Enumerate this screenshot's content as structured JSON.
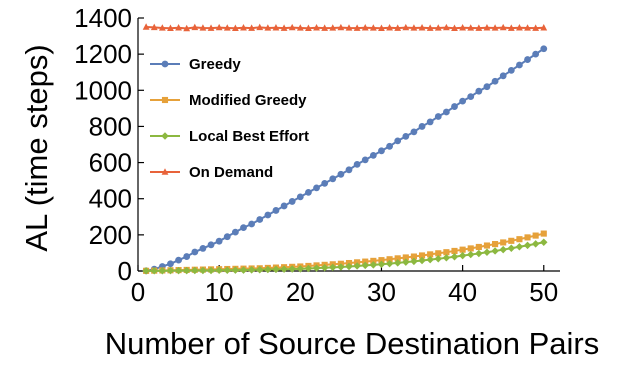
{
  "chart_data": {
    "type": "line",
    "title": "",
    "xlabel": "Number of Source Destination Pairs",
    "ylabel": "AL (time steps)",
    "xlim": [
      0,
      52
    ],
    "ylim": [
      0,
      1400
    ],
    "xticks": [
      0,
      10,
      20,
      30,
      40,
      50
    ],
    "yticks": [
      0,
      200,
      400,
      600,
      800,
      1000,
      1200,
      1400
    ],
    "grid": false,
    "legend_position": "left",
    "x": [
      1,
      2,
      3,
      4,
      5,
      6,
      7,
      8,
      9,
      10,
      11,
      12,
      13,
      14,
      15,
      16,
      17,
      18,
      19,
      20,
      21,
      22,
      23,
      24,
      25,
      26,
      27,
      28,
      29,
      30,
      31,
      32,
      33,
      34,
      35,
      36,
      37,
      38,
      39,
      40,
      41,
      42,
      43,
      44,
      45,
      46,
      47,
      48,
      49,
      50
    ],
    "series": [
      {
        "name": "Greedy",
        "color": "#5B7DB8",
        "marker": "circle",
        "values": [
          1,
          10,
          25,
          40,
          60,
          80,
          105,
          125,
          145,
          165,
          190,
          215,
          240,
          260,
          285,
          310,
          335,
          360,
          385,
          410,
          435,
          460,
          485,
          510,
          535,
          560,
          590,
          615,
          640,
          665,
          690,
          720,
          745,
          770,
          800,
          825,
          855,
          880,
          910,
          940,
          965,
          995,
          1020,
          1050,
          1080,
          1110,
          1140,
          1170,
          1200,
          1230
        ]
      },
      {
        "name": "Modified Greedy",
        "color": "#E6A13A",
        "marker": "square",
        "values": [
          1,
          2,
          3,
          4,
          5,
          6,
          7,
          8,
          9,
          10,
          11,
          12,
          13,
          14,
          15,
          17,
          19,
          21,
          23,
          25,
          28,
          31,
          34,
          37,
          40,
          44,
          48,
          52,
          56,
          60,
          65,
          70,
          75,
          80,
          86,
          92,
          98,
          104,
          111,
          118,
          125,
          133,
          141,
          149,
          158,
          167,
          176,
          186,
          196,
          207
        ]
      },
      {
        "name": "Local Best Effort",
        "color": "#8CB840",
        "marker": "diamond",
        "values": [
          1,
          1,
          1,
          2,
          2,
          2,
          3,
          3,
          3,
          4,
          4,
          5,
          5,
          6,
          7,
          8,
          9,
          10,
          11,
          12,
          14,
          16,
          18,
          20,
          22,
          25,
          28,
          31,
          34,
          37,
          41,
          45,
          49,
          53,
          58,
          63,
          68,
          73,
          79,
          85,
          91,
          97,
          104,
          111,
          118,
          126,
          134,
          142,
          150,
          159
        ]
      },
      {
        "name": "On Demand",
        "color": "#E8633A",
        "marker": "triangle",
        "values": [
          1350,
          1348,
          1345,
          1343,
          1346,
          1342,
          1348,
          1345,
          1344,
          1347,
          1345,
          1343,
          1346,
          1344,
          1348,
          1345,
          1346,
          1344,
          1347,
          1345,
          1343,
          1346,
          1344,
          1345,
          1347,
          1345,
          1344,
          1346,
          1345,
          1343,
          1346,
          1344,
          1347,
          1345,
          1346,
          1344,
          1345,
          1347,
          1343,
          1346,
          1345,
          1344,
          1346,
          1345,
          1347,
          1344,
          1346,
          1345,
          1344,
          1346
        ]
      }
    ]
  }
}
